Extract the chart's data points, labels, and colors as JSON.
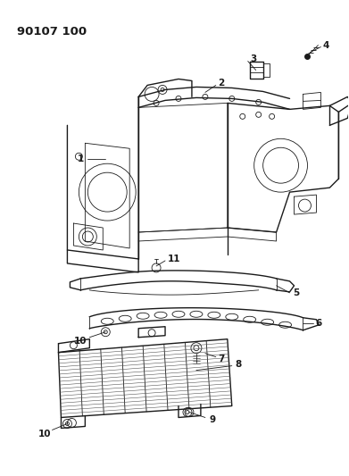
{
  "title": "90107 100",
  "bg_color": "#ffffff",
  "line_color": "#1a1a1a",
  "figsize": [
    3.91,
    5.33
  ],
  "dpi": 100
}
